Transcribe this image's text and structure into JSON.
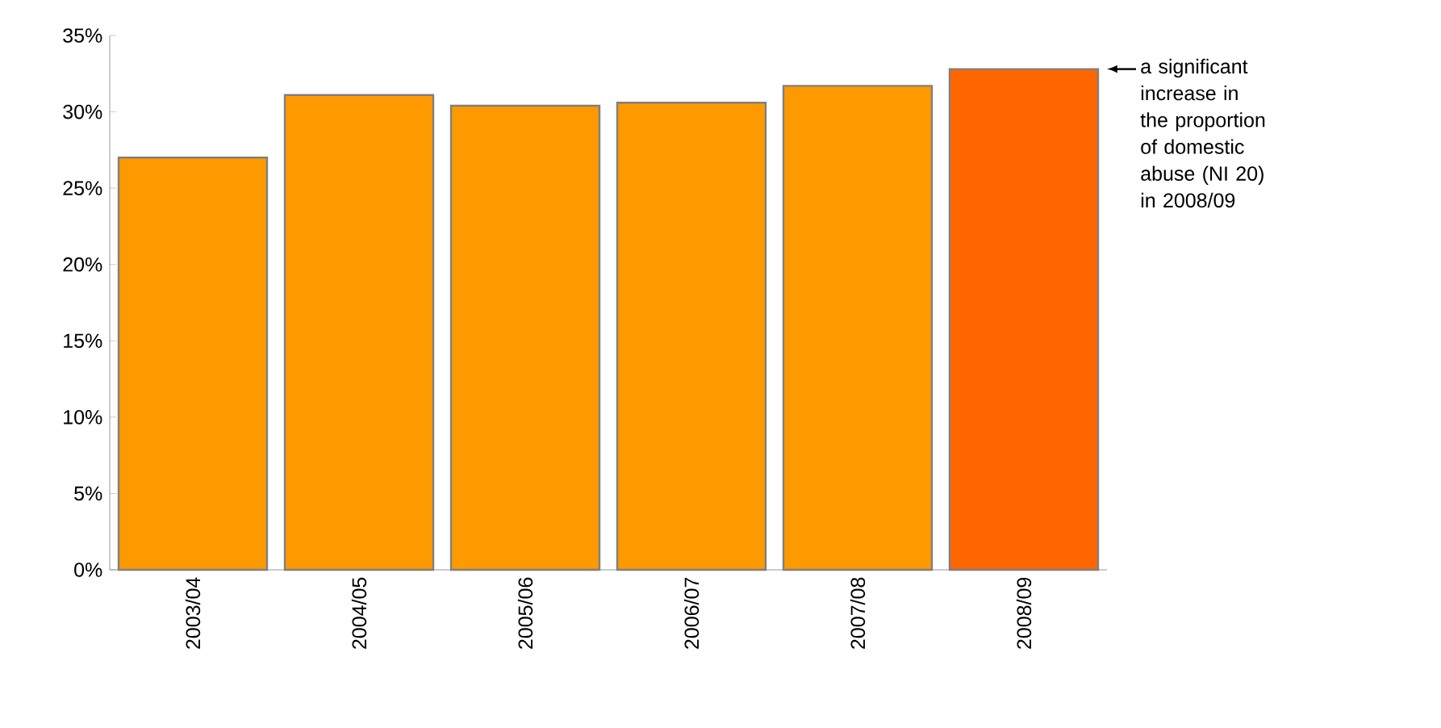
{
  "chart_data": {
    "type": "bar",
    "categories": [
      "2003/04",
      "2004/05",
      "2005/06",
      "2006/07",
      "2007/08",
      "2008/09"
    ],
    "values": [
      27.0,
      31.1,
      30.4,
      30.6,
      31.7,
      32.8
    ],
    "colors": [
      "#ff9900",
      "#ff9900",
      "#ff9900",
      "#ff9900",
      "#ff9900",
      "#ff6600"
    ],
    "ylim": [
      0,
      35
    ],
    "yticks": [
      {
        "value": 0,
        "label": "0%"
      },
      {
        "value": 5,
        "label": "5%"
      },
      {
        "value": 10,
        "label": "10%"
      },
      {
        "value": 15,
        "label": "15%"
      },
      {
        "value": 20,
        "label": "20%"
      },
      {
        "value": 25,
        "label": "25%"
      },
      {
        "value": 30,
        "label": "30%"
      },
      {
        "value": 35,
        "label": "35%"
      }
    ],
    "grid": false,
    "annotations": [
      "a significant increase in the proportion of domestic abuse (NI 20) in 2008/09"
    ]
  }
}
